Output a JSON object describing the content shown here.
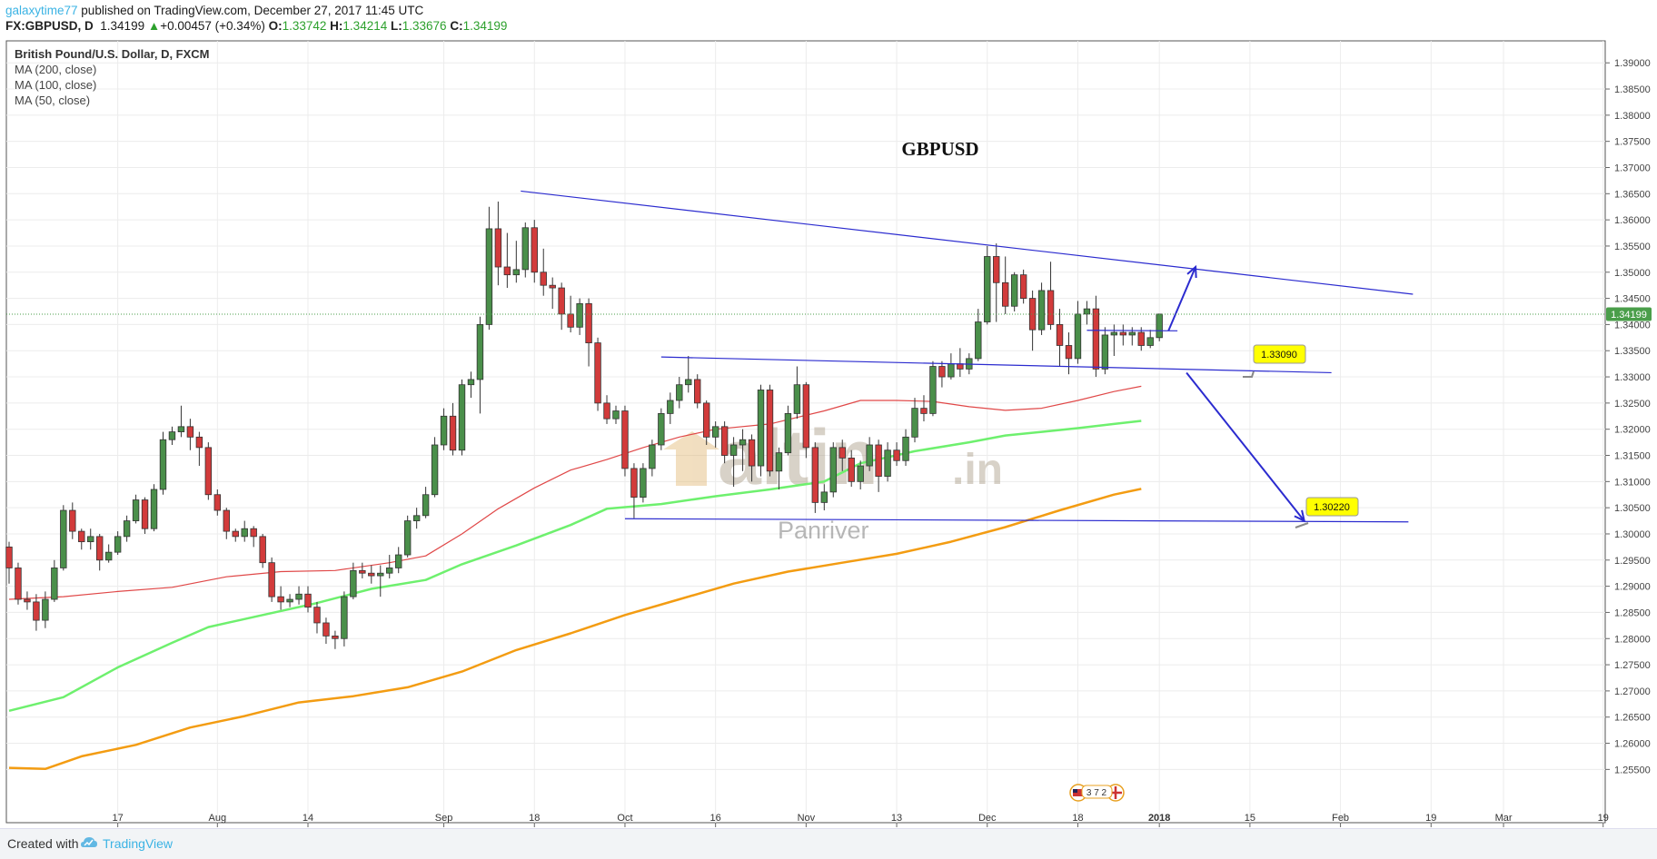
{
  "header": {
    "author": "galaxytime77",
    "published_text": " published on TradingView.com, December 27, 2017 11:45 UTC",
    "symbol": "FX:GBPUSD, D",
    "last": "1.34199",
    "change": "+0.00457 (+0.34%)",
    "o_label": "O:",
    "o_value": "1.33742",
    "h_label": "H:",
    "h_value": "1.34214",
    "l_label": "L:",
    "l_value": "1.33676",
    "c_label": "C:",
    "c_value": "1.34199"
  },
  "legend": {
    "title": "British Pound/U.S. Dollar, D, FXCM",
    "ma200": "MA (200, close)",
    "ma100": "MA (100, close)",
    "ma50": "MA (50, close)"
  },
  "chart_title": "GBPUSD",
  "watermark": {
    "main": "altin",
    "suffix": ".in",
    "sub": "Panriver"
  },
  "event_badges": "3 7 2",
  "price_tag": "1.34199",
  "annotations": {
    "upper": "1.33090",
    "lower": "1.30220"
  },
  "footer": {
    "created": "Created with",
    "brand": "TradingView"
  },
  "colors": {
    "up": "#4a8f4a",
    "down": "#d23b3b",
    "ma200": "#f39c12",
    "ma100": "#6ef06e",
    "ma50": "#e04848",
    "trendline": "#2b2bcf",
    "price_tag": "#4a9e4a",
    "label_bg": "#ffff00"
  },
  "chart_data": {
    "type": "candlestick",
    "title": "GBPUSD",
    "ylim": [
      1.245,
      1.3942
    ],
    "y_ticks": [
      "1.39000",
      "1.38500",
      "1.38000",
      "1.37500",
      "1.37000",
      "1.36500",
      "1.36000",
      "1.35500",
      "1.35000",
      "1.34500",
      "1.34000",
      "1.33500",
      "1.33000",
      "1.32500",
      "1.32000",
      "1.31500",
      "1.31000",
      "1.30500",
      "1.30000",
      "1.29500",
      "1.29000",
      "1.28500",
      "1.28000",
      "1.27500",
      "1.27000",
      "1.26500",
      "1.26000",
      "1.25500"
    ],
    "x_ticks": [
      {
        "i": 12,
        "label": "17"
      },
      {
        "i": 23,
        "label": "Aug"
      },
      {
        "i": 33,
        "label": "14"
      },
      {
        "i": 48,
        "label": "Sep"
      },
      {
        "i": 58,
        "label": "18"
      },
      {
        "i": 68,
        "label": "Oct"
      },
      {
        "i": 78,
        "label": "16"
      },
      {
        "i": 88,
        "label": "Nov"
      },
      {
        "i": 98,
        "label": "13"
      },
      {
        "i": 108,
        "label": "Dec"
      },
      {
        "i": 118,
        "label": "18"
      },
      {
        "i": 127,
        "label": "2018"
      },
      {
        "i": 137,
        "label": "15"
      },
      {
        "i": 147,
        "label": "Feb"
      },
      {
        "i": 157,
        "label": "19"
      },
      {
        "i": 165,
        "label": "Mar"
      },
      {
        "i": 176,
        "label": "19"
      }
    ],
    "candles": [
      [
        1.2975,
        1.2935,
        1.2985,
        1.2905
      ],
      [
        1.2935,
        1.2875,
        1.2945,
        1.2865
      ],
      [
        1.2875,
        1.287,
        1.289,
        1.2855
      ],
      [
        1.287,
        1.2835,
        1.2885,
        1.2815
      ],
      [
        1.2835,
        1.2875,
        1.289,
        1.282
      ],
      [
        1.2875,
        1.2935,
        1.295,
        1.287
      ],
      [
        1.2935,
        1.3045,
        1.3055,
        1.293
      ],
      [
        1.3045,
        1.3005,
        1.306,
        1.299
      ],
      [
        1.3005,
        1.2985,
        1.301,
        1.297
      ],
      [
        1.2985,
        1.2995,
        1.301,
        1.297
      ],
      [
        1.2995,
        1.295,
        1.3,
        1.293
      ],
      [
        1.295,
        1.2965,
        1.298,
        1.2945
      ],
      [
        1.2965,
        1.2995,
        1.3005,
        1.296
      ],
      [
        1.2995,
        1.3025,
        1.3035,
        1.2985
      ],
      [
        1.3025,
        1.3065,
        1.3075,
        1.302
      ],
      [
        1.3065,
        1.301,
        1.307,
        1.3
      ],
      [
        1.301,
        1.3085,
        1.3095,
        1.3005
      ],
      [
        1.3085,
        1.318,
        1.3195,
        1.3075
      ],
      [
        1.318,
        1.3195,
        1.3205,
        1.317
      ],
      [
        1.3195,
        1.3205,
        1.3245,
        1.3185
      ],
      [
        1.3205,
        1.3185,
        1.322,
        1.316
      ],
      [
        1.3185,
        1.3165,
        1.3195,
        1.313
      ],
      [
        1.3165,
        1.3075,
        1.3175,
        1.3065
      ],
      [
        1.3075,
        1.3045,
        1.3085,
        1.3035
      ],
      [
        1.3045,
        1.3005,
        1.305,
        1.299
      ],
      [
        1.3005,
        1.2995,
        1.301,
        1.2985
      ],
      [
        1.2995,
        1.301,
        1.3025,
        1.2985
      ],
      [
        1.301,
        1.2995,
        1.3015,
        1.2975
      ],
      [
        1.2995,
        1.2945,
        1.3,
        1.2935
      ],
      [
        1.2945,
        1.288,
        1.2955,
        1.287
      ],
      [
        1.288,
        1.287,
        1.29,
        1.2855
      ],
      [
        1.287,
        1.2875,
        1.2885,
        1.286
      ],
      [
        1.2875,
        1.2885,
        1.29,
        1.2865
      ],
      [
        1.2885,
        1.286,
        1.29,
        1.285
      ],
      [
        1.286,
        1.283,
        1.287,
        1.281
      ],
      [
        1.283,
        1.2805,
        1.284,
        1.279
      ],
      [
        1.2805,
        1.28,
        1.2815,
        1.278
      ],
      [
        1.28,
        1.288,
        1.289,
        1.2785
      ],
      [
        1.288,
        1.293,
        1.2945,
        1.2875
      ],
      [
        1.293,
        1.2925,
        1.2945,
        1.2915
      ],
      [
        1.2925,
        1.292,
        1.294,
        1.2905
      ],
      [
        1.292,
        1.2925,
        1.294,
        1.288
      ],
      [
        1.2925,
        1.2935,
        1.296,
        1.2915
      ],
      [
        1.2935,
        1.296,
        1.2975,
        1.2925
      ],
      [
        1.296,
        1.3025,
        1.3035,
        1.2955
      ],
      [
        1.3025,
        1.3035,
        1.305,
        1.301
      ],
      [
        1.3035,
        1.3075,
        1.309,
        1.303
      ],
      [
        1.3075,
        1.317,
        1.3185,
        1.307
      ],
      [
        1.317,
        1.3225,
        1.324,
        1.316
      ],
      [
        1.3225,
        1.316,
        1.325,
        1.315
      ],
      [
        1.316,
        1.3285,
        1.3295,
        1.315
      ],
      [
        1.3285,
        1.3295,
        1.331,
        1.326
      ],
      [
        1.3295,
        1.34,
        1.3415,
        1.323
      ],
      [
        1.34,
        1.3583,
        1.3625,
        1.339
      ],
      [
        1.3583,
        1.351,
        1.3635,
        1.3475
      ],
      [
        1.351,
        1.3495,
        1.3575,
        1.347
      ],
      [
        1.3495,
        1.3505,
        1.356,
        1.348
      ],
      [
        1.3505,
        1.3585,
        1.3595,
        1.349
      ],
      [
        1.3585,
        1.35,
        1.36,
        1.348
      ],
      [
        1.35,
        1.3475,
        1.3545,
        1.3455
      ],
      [
        1.3475,
        1.347,
        1.349,
        1.343
      ],
      [
        1.347,
        1.342,
        1.348,
        1.339
      ],
      [
        1.342,
        1.3395,
        1.3455,
        1.3385
      ],
      [
        1.3395,
        1.344,
        1.345,
        1.338
      ],
      [
        1.344,
        1.3365,
        1.345,
        1.332
      ],
      [
        1.3365,
        1.325,
        1.3375,
        1.3235
      ],
      [
        1.325,
        1.322,
        1.3265,
        1.321
      ],
      [
        1.322,
        1.3235,
        1.3245,
        1.321
      ],
      [
        1.3235,
        1.3125,
        1.3245,
        1.311
      ],
      [
        1.3125,
        1.307,
        1.3135,
        1.303
      ],
      [
        1.307,
        1.3125,
        1.3135,
        1.306
      ],
      [
        1.3125,
        1.317,
        1.318,
        1.311
      ],
      [
        1.317,
        1.323,
        1.324,
        1.316
      ],
      [
        1.323,
        1.3255,
        1.327,
        1.321
      ],
      [
        1.3255,
        1.3285,
        1.33,
        1.324
      ],
      [
        1.3285,
        1.3295,
        1.334,
        1.327
      ],
      [
        1.3295,
        1.325,
        1.3305,
        1.324
      ],
      [
        1.325,
        1.3185,
        1.3255,
        1.317
      ],
      [
        1.3185,
        1.3205,
        1.3215,
        1.3165
      ],
      [
        1.3205,
        1.315,
        1.3215,
        1.3135
      ],
      [
        1.315,
        1.317,
        1.3185,
        1.309
      ],
      [
        1.317,
        1.318,
        1.32,
        1.312
      ],
      [
        1.318,
        1.313,
        1.319,
        1.31
      ],
      [
        1.313,
        1.3275,
        1.3285,
        1.311
      ],
      [
        1.3275,
        1.312,
        1.3285,
        1.311
      ],
      [
        1.312,
        1.3155,
        1.3165,
        1.3085
      ],
      [
        1.3155,
        1.323,
        1.3245,
        1.315
      ],
      [
        1.323,
        1.3285,
        1.332,
        1.322
      ],
      [
        1.3285,
        1.3165,
        1.329,
        1.3145
      ],
      [
        1.3165,
        1.306,
        1.3175,
        1.304
      ],
      [
        1.306,
        1.308,
        1.3095,
        1.3045
      ],
      [
        1.308,
        1.3165,
        1.3175,
        1.307
      ],
      [
        1.3165,
        1.3145,
        1.318,
        1.312
      ],
      [
        1.3145,
        1.31,
        1.316,
        1.309
      ],
      [
        1.31,
        1.313,
        1.314,
        1.3085
      ],
      [
        1.313,
        1.317,
        1.3185,
        1.312
      ],
      [
        1.317,
        1.311,
        1.318,
        1.308
      ],
      [
        1.311,
        1.316,
        1.3175,
        1.31
      ],
      [
        1.316,
        1.314,
        1.3175,
        1.313
      ],
      [
        1.314,
        1.3185,
        1.32,
        1.313
      ],
      [
        1.3185,
        1.324,
        1.326,
        1.3175
      ],
      [
        1.324,
        1.323,
        1.3265,
        1.3215
      ],
      [
        1.323,
        1.332,
        1.333,
        1.3225
      ],
      [
        1.332,
        1.33,
        1.333,
        1.328
      ],
      [
        1.33,
        1.3325,
        1.3345,
        1.3295
      ],
      [
        1.3325,
        1.3315,
        1.3355,
        1.33
      ],
      [
        1.3315,
        1.3335,
        1.3345,
        1.3305
      ],
      [
        1.3335,
        1.3405,
        1.343,
        1.333
      ],
      [
        1.3405,
        1.353,
        1.355,
        1.34
      ],
      [
        1.353,
        1.348,
        1.3555,
        1.3405
      ],
      [
        1.348,
        1.3435,
        1.353,
        1.342
      ],
      [
        1.3435,
        1.3495,
        1.35,
        1.3425
      ],
      [
        1.3495,
        1.345,
        1.3505,
        1.344
      ],
      [
        1.345,
        1.339,
        1.3465,
        1.335
      ],
      [
        1.339,
        1.3465,
        1.348,
        1.338
      ],
      [
        1.3465,
        1.34,
        1.352,
        1.339
      ],
      [
        1.34,
        1.336,
        1.343,
        1.332
      ],
      [
        1.336,
        1.3335,
        1.3385,
        1.3305
      ],
      [
        1.3335,
        1.342,
        1.3445,
        1.3325
      ],
      [
        1.342,
        1.343,
        1.3445,
        1.34
      ],
      [
        1.343,
        1.3315,
        1.3455,
        1.33
      ],
      [
        1.3315,
        1.338,
        1.3395,
        1.3305
      ],
      [
        1.338,
        1.3385,
        1.34,
        1.334
      ],
      [
        1.3385,
        1.338,
        1.34,
        1.336
      ],
      [
        1.338,
        1.3385,
        1.3395,
        1.336
      ],
      [
        1.3385,
        1.336,
        1.3395,
        1.335
      ],
      [
        1.336,
        1.3375,
        1.339,
        1.3355
      ],
      [
        1.3375,
        1.342,
        1.3421,
        1.3368
      ]
    ],
    "ma200": [
      [
        0,
        1.2553
      ],
      [
        4,
        1.2551
      ],
      [
        8,
        1.2575
      ],
      [
        14,
        1.2597
      ],
      [
        20,
        1.263
      ],
      [
        26,
        1.2652
      ],
      [
        32,
        1.2678
      ],
      [
        38,
        1.269
      ],
      [
        44,
        1.2707
      ],
      [
        50,
        1.2737
      ],
      [
        56,
        1.2778
      ],
      [
        62,
        1.281
      ],
      [
        68,
        1.2845
      ],
      [
        74,
        1.2875
      ],
      [
        80,
        1.2905
      ],
      [
        86,
        1.2928
      ],
      [
        92,
        1.2945
      ],
      [
        98,
        1.2962
      ],
      [
        104,
        1.2985
      ],
      [
        110,
        1.3013
      ],
      [
        116,
        1.3045
      ],
      [
        122,
        1.3075
      ],
      [
        125,
        1.3086
      ]
    ],
    "ma100": [
      [
        0,
        1.2662
      ],
      [
        6,
        1.2688
      ],
      [
        12,
        1.2745
      ],
      [
        18,
        1.2792
      ],
      [
        22,
        1.2822
      ],
      [
        28,
        1.2845
      ],
      [
        34,
        1.2868
      ],
      [
        40,
        1.2895
      ],
      [
        46,
        1.2912
      ],
      [
        50,
        1.2942
      ],
      [
        56,
        1.2978
      ],
      [
        62,
        1.3017
      ],
      [
        66,
        1.3048
      ],
      [
        72,
        1.3057
      ],
      [
        78,
        1.3072
      ],
      [
        84,
        1.3085
      ],
      [
        90,
        1.31
      ],
      [
        94,
        1.3135
      ],
      [
        100,
        1.3158
      ],
      [
        106,
        1.3175
      ],
      [
        110,
        1.3188
      ],
      [
        114,
        1.3195
      ],
      [
        118,
        1.3202
      ],
      [
        122,
        1.321
      ],
      [
        125,
        1.3216
      ]
    ],
    "ma50": [
      [
        0,
        1.2875
      ],
      [
        6,
        1.288
      ],
      [
        12,
        1.289
      ],
      [
        18,
        1.2898
      ],
      [
        24,
        1.2918
      ],
      [
        30,
        1.2928
      ],
      [
        36,
        1.293
      ],
      [
        42,
        1.2945
      ],
      [
        46,
        1.2958
      ],
      [
        50,
        1.3
      ],
      [
        54,
        1.3048
      ],
      [
        58,
        1.3088
      ],
      [
        62,
        1.3122
      ],
      [
        66,
        1.3142
      ],
      [
        70,
        1.3165
      ],
      [
        74,
        1.3185
      ],
      [
        78,
        1.32
      ],
      [
        84,
        1.321
      ],
      [
        90,
        1.3235
      ],
      [
        94,
        1.3255
      ],
      [
        98,
        1.3255
      ],
      [
        102,
        1.3253
      ],
      [
        106,
        1.3243
      ],
      [
        110,
        1.3236
      ],
      [
        114,
        1.324
      ],
      [
        118,
        1.3255
      ],
      [
        122,
        1.3272
      ],
      [
        125,
        1.3282
      ]
    ],
    "trendlines": [
      {
        "x1": 56.5,
        "y1": 1.3655,
        "x2": 155,
        "y2": 1.3458
      },
      {
        "x1": 72,
        "y1": 1.3338,
        "x2": 146,
        "y2": 1.3308
      },
      {
        "x1": 68,
        "y1": 1.3029,
        "x2": 154.5,
        "y2": 1.3023
      },
      {
        "x1": 119,
        "y1": 1.3389,
        "x2": 129,
        "y2": 1.3388
      }
    ],
    "arrows": [
      {
        "x1": 128,
        "y1": 1.3388,
        "x2": 131,
        "y2": 1.351
      },
      {
        "x1": 130,
        "y1": 1.3308,
        "x2": 143,
        "y2": 1.3025
      }
    ]
  }
}
